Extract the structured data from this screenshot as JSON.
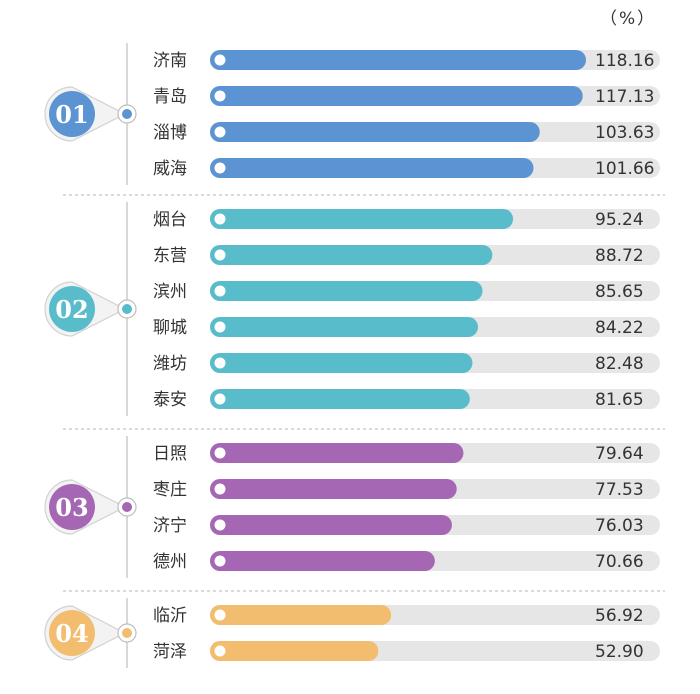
{
  "unit_label": "（%）",
  "colors": {
    "track": "#e6e6e6",
    "separator": "#b5b5b5",
    "axis_line": "#c8c8c8",
    "group_1": "#5b93d3",
    "group_2": "#59bccb",
    "group_3": "#a567b3",
    "group_4": "#f2bd6e"
  },
  "chart_data": {
    "type": "bar",
    "orientation": "horizontal",
    "unit": "%",
    "xlim": [
      0,
      140
    ],
    "groups": [
      {
        "label": "01",
        "color": "#5b93d3",
        "categories": [
          "济南",
          "青岛",
          "淄博",
          "威海"
        ],
        "values": [
          118.16,
          117.13,
          103.63,
          101.66
        ],
        "value_labels": [
          "118.16",
          "117.13",
          "103.63",
          "101.66"
        ]
      },
      {
        "label": "02",
        "color": "#59bccb",
        "categories": [
          "烟台",
          "东营",
          "滨州",
          "聊城",
          "潍坊",
          "泰安"
        ],
        "values": [
          95.24,
          88.72,
          85.65,
          84.22,
          82.48,
          81.65
        ],
        "value_labels": [
          "95.24",
          "88.72",
          "85.65",
          "84.22",
          "82.48",
          "81.65"
        ]
      },
      {
        "label": "03",
        "color": "#a567b3",
        "categories": [
          "日照",
          "枣庄",
          "济宁",
          "德州"
        ],
        "values": [
          79.64,
          77.53,
          76.03,
          70.66
        ],
        "value_labels": [
          "79.64",
          "77.53",
          "76.03",
          "70.66"
        ]
      },
      {
        "label": "04",
        "color": "#f2bd6e",
        "categories": [
          "临沂",
          "菏泽"
        ],
        "values": [
          56.92,
          52.9
        ],
        "value_labels": [
          "56.92",
          "52.90"
        ]
      }
    ]
  }
}
